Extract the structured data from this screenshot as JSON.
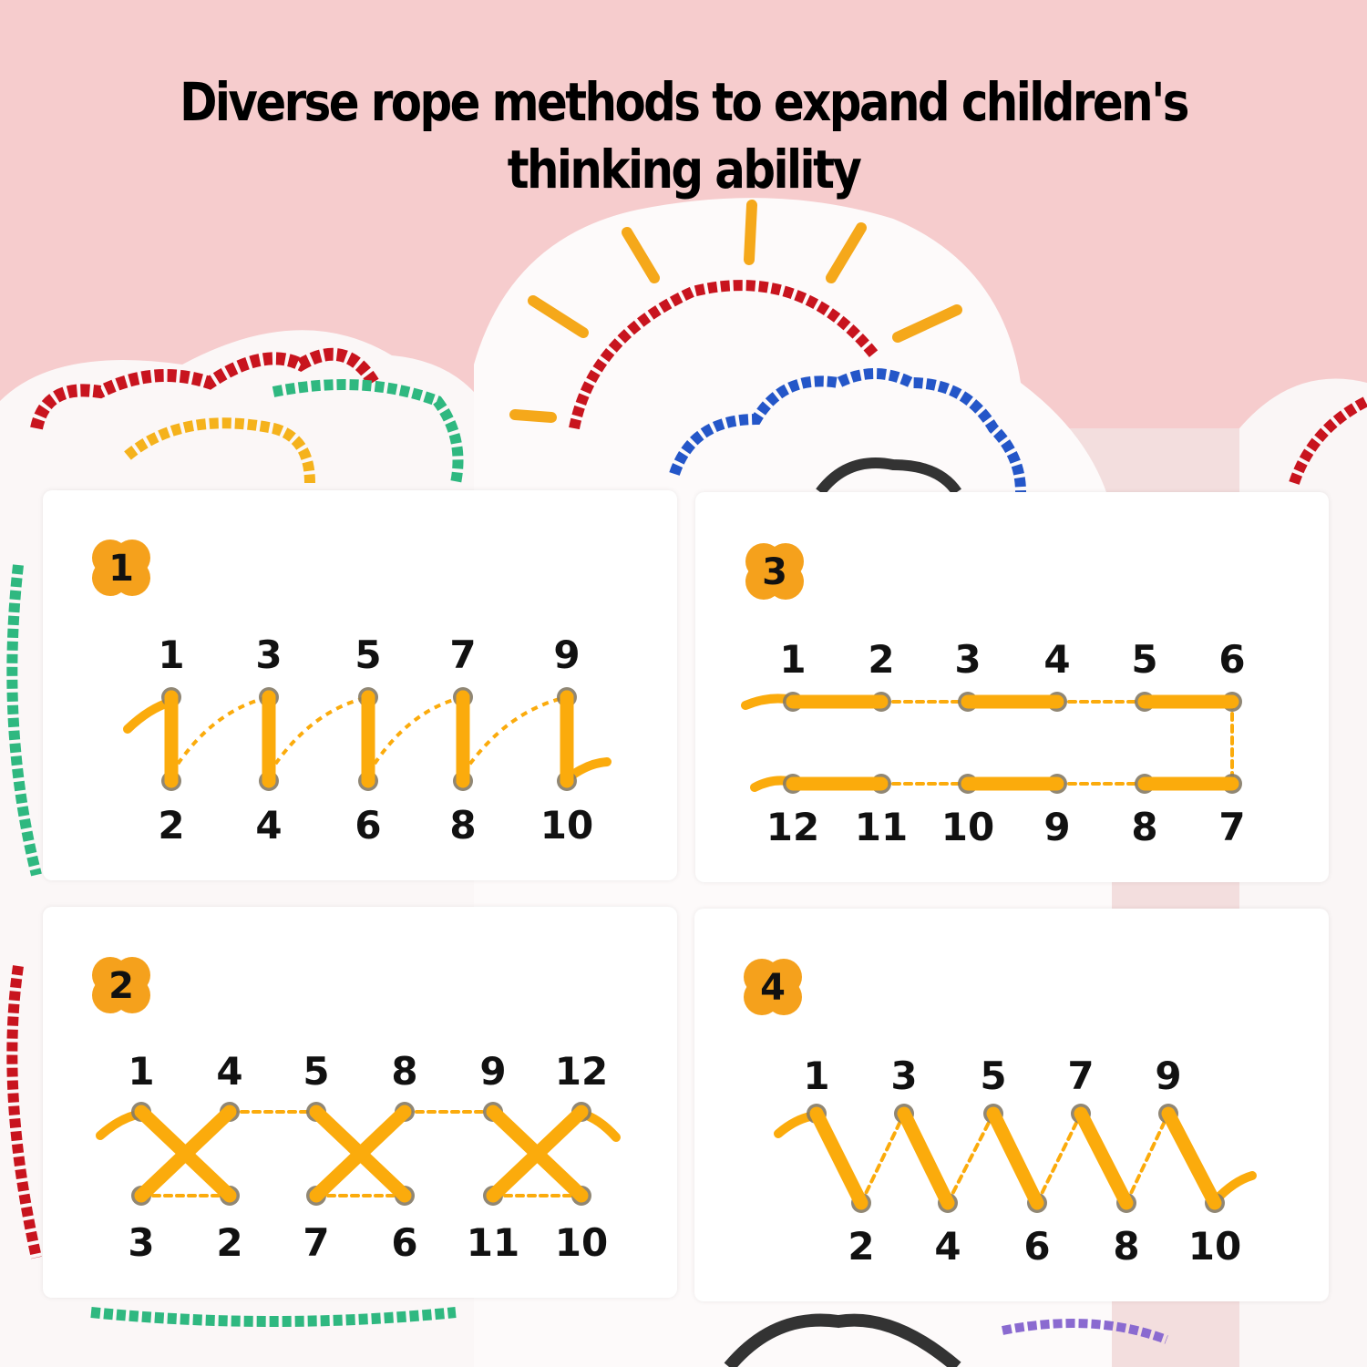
{
  "title": {
    "line1": "Diverse rope methods to expand children's",
    "line2": "thinking ability"
  },
  "colors": {
    "background_pink": "#f6cccd",
    "rope_orange": "#fbab0c",
    "badge_orange": "#f5a11c",
    "hole_gray": "#847a66"
  },
  "panels": [
    {
      "badge": "1",
      "top_labels": [
        "1",
        "3",
        "5",
        "7",
        "9"
      ],
      "bottom_labels": [
        "2",
        "4",
        "6",
        "8",
        "10"
      ]
    },
    {
      "badge": "3",
      "top_labels": [
        "1",
        "2",
        "3",
        "4",
        "5",
        "6"
      ],
      "bottom_labels": [
        "12",
        "11",
        "10",
        "9",
        "8",
        "7"
      ]
    },
    {
      "badge": "2",
      "top_labels": [
        "1",
        "4",
        "5",
        "8",
        "9",
        "12"
      ],
      "bottom_labels": [
        "3",
        "2",
        "7",
        "6",
        "11",
        "10"
      ]
    },
    {
      "badge": "4",
      "top_labels": [
        "1",
        "3",
        "5",
        "7",
        "9"
      ],
      "bottom_labels": [
        "2",
        "4",
        "6",
        "8",
        "10"
      ]
    }
  ]
}
